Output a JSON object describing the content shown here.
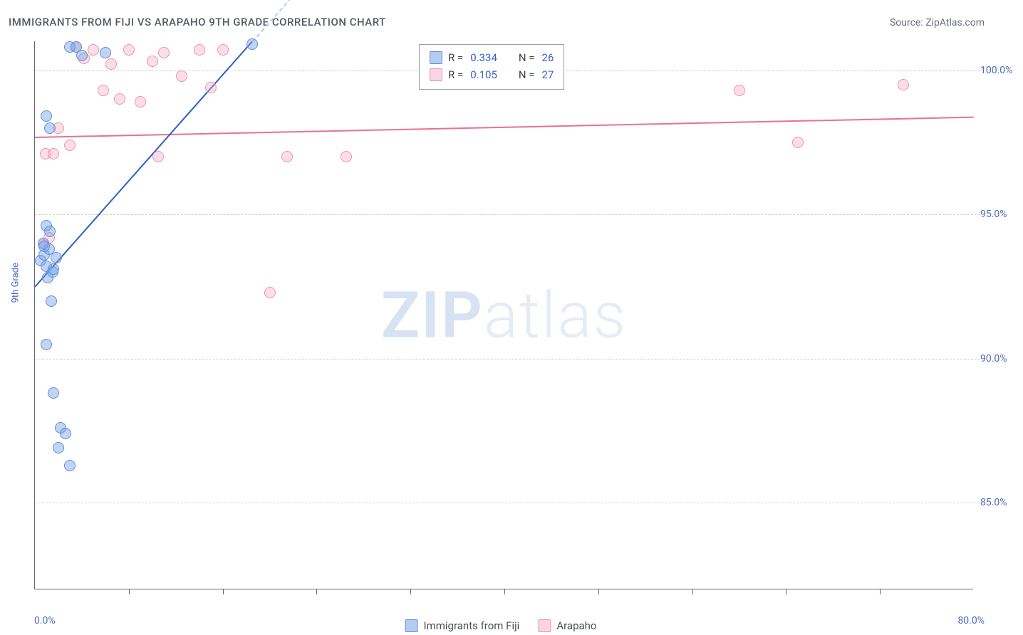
{
  "title": "IMMIGRANTS FROM FIJI VS ARAPAHO 9TH GRADE CORRELATION CHART",
  "source": "Source: ZipAtlas.com",
  "ylabel": "9th Grade",
  "watermark_bold": "ZIP",
  "watermark_light": "atlas",
  "chart": {
    "type": "scatter",
    "background_color": "#ffffff",
    "grid_color": "#d0d0d0",
    "axis_color": "#666666",
    "xlim": [
      0,
      80
    ],
    "ylim": [
      82,
      101
    ],
    "y_ticks": [
      85.0,
      90.0,
      95.0,
      100.0
    ],
    "y_tick_labels": [
      "85.0%",
      "90.0%",
      "95.0%",
      "100.0%"
    ],
    "x_minor_ticks": [
      8,
      16,
      24,
      32,
      40,
      48,
      56,
      64,
      72
    ],
    "x_end_labels": {
      "min": "0.0%",
      "max": "80.0%"
    },
    "point_radius": 8,
    "series": [
      {
        "name": "Immigrants from Fiji",
        "color": "#5e8fd8",
        "fill": "rgba(120,160,230,0.45)",
        "r": 0.334,
        "n": 26,
        "trend": {
          "x1": 0,
          "y1": 92.5,
          "x2": 18.5,
          "y2": 101,
          "dashed_continue_to_x": 23
        },
        "points": [
          [
            0.5,
            93.4
          ],
          [
            0.8,
            93.6
          ],
          [
            1.0,
            93.2
          ],
          [
            1.2,
            93.8
          ],
          [
            1.5,
            93.0
          ],
          [
            1.0,
            94.6
          ],
          [
            1.3,
            94.4
          ],
          [
            0.7,
            94.0
          ],
          [
            1.8,
            93.5
          ],
          [
            1.1,
            92.8
          ],
          [
            1.4,
            92.0
          ],
          [
            1.0,
            90.5
          ],
          [
            1.6,
            88.8
          ],
          [
            2.2,
            87.6
          ],
          [
            2.6,
            87.4
          ],
          [
            2.0,
            86.9
          ],
          [
            3.0,
            86.3
          ],
          [
            1.0,
            98.4
          ],
          [
            1.3,
            98.0
          ],
          [
            3.0,
            100.8
          ],
          [
            3.5,
            100.8
          ],
          [
            4.0,
            100.5
          ],
          [
            6.0,
            100.6
          ],
          [
            18.5,
            100.9
          ],
          [
            0.8,
            93.9
          ],
          [
            1.6,
            93.1
          ]
        ]
      },
      {
        "name": "Arapaho",
        "color": "#ec91b2",
        "fill": "rgba(245,160,190,0.35)",
        "r": 0.105,
        "n": 27,
        "trend": {
          "x1": 0,
          "y1": 97.7,
          "x2": 80,
          "y2": 98.4
        },
        "points": [
          [
            0.9,
            97.1
          ],
          [
            1.6,
            97.1
          ],
          [
            2.0,
            98.0
          ],
          [
            3.0,
            97.4
          ],
          [
            3.5,
            100.8
          ],
          [
            4.2,
            100.4
          ],
          [
            5.0,
            100.7
          ],
          [
            5.8,
            99.3
          ],
          [
            6.5,
            100.2
          ],
          [
            7.2,
            99.0
          ],
          [
            8.0,
            100.7
          ],
          [
            9.0,
            98.9
          ],
          [
            10.0,
            100.3
          ],
          [
            11.0,
            100.6
          ],
          [
            12.5,
            99.8
          ],
          [
            14.0,
            100.7
          ],
          [
            10.5,
            97.0
          ],
          [
            21.5,
            97.0
          ],
          [
            26.5,
            97.0
          ],
          [
            20.0,
            92.3
          ],
          [
            16.0,
            100.7
          ],
          [
            60.0,
            99.3
          ],
          [
            65.0,
            97.5
          ],
          [
            74.0,
            99.5
          ],
          [
            1.2,
            94.2
          ],
          [
            0.7,
            94.0
          ],
          [
            15.0,
            99.4
          ]
        ]
      }
    ]
  },
  "top_legend": {
    "rows": [
      {
        "swatch": "blue",
        "r_label": "R =",
        "r_val": "0.334",
        "n_label": "N =",
        "n_val": "26"
      },
      {
        "swatch": "pink",
        "r_label": "R =",
        "r_val": "0.105",
        "n_label": "N =",
        "n_val": "27"
      }
    ]
  },
  "bottom_legend": [
    {
      "swatch": "blue",
      "label": "Immigrants from Fiji"
    },
    {
      "swatch": "pink",
      "label": "Arapaho"
    }
  ]
}
